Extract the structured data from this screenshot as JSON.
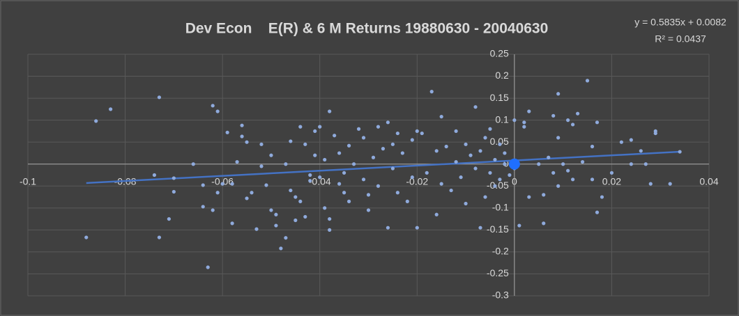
{
  "chart_data": {
    "type": "scatter",
    "title": "Dev Econ    E(R) & 6 M Returns 19880630 - 20040630",
    "trendline_label": "y = 0.5835x + 0.0082",
    "r2_label": "R² = 0.0437",
    "trendline": {
      "slope": 0.5835,
      "intercept": 0.0082,
      "color": "#4472c4"
    },
    "xlim": [
      -0.1,
      0.04
    ],
    "ylim": [
      -0.3,
      0.25
    ],
    "xticks": [
      -0.1,
      -0.08,
      -0.06,
      -0.04,
      -0.02,
      0,
      0.02,
      0.04
    ],
    "yticks": [
      -0.3,
      -0.25,
      -0.2,
      -0.15,
      -0.1,
      -0.05,
      0,
      0.05,
      0.1,
      0.15,
      0.2,
      0.25
    ],
    "grid": true,
    "series": [
      {
        "color": "#8faadc",
        "marker_size": 2.6,
        "x": [
          -0.088,
          -0.086,
          -0.083,
          -0.073,
          -0.074,
          -0.073,
          -0.071,
          -0.07,
          -0.07,
          -0.066,
          -0.064,
          -0.064,
          -0.063,
          -0.062,
          -0.062,
          -0.061,
          -0.061,
          -0.06,
          -0.059,
          -0.058,
          -0.058,
          -0.057,
          -0.056,
          -0.056,
          -0.055,
          -0.055,
          -0.054,
          -0.053,
          -0.052,
          -0.052,
          -0.051,
          -0.05,
          -0.05,
          -0.049,
          -0.049,
          -0.048,
          -0.047,
          -0.047,
          -0.046,
          -0.046,
          -0.045,
          -0.045,
          -0.044,
          -0.044,
          -0.043,
          -0.043,
          -0.042,
          -0.042,
          -0.041,
          -0.041,
          -0.04,
          -0.04,
          -0.039,
          -0.039,
          -0.038,
          -0.038,
          -0.038,
          -0.037,
          -0.036,
          -0.036,
          -0.035,
          -0.035,
          -0.034,
          -0.034,
          -0.033,
          -0.032,
          -0.031,
          -0.031,
          -0.03,
          -0.03,
          -0.029,
          -0.028,
          -0.028,
          -0.027,
          -0.026,
          -0.026,
          -0.025,
          -0.025,
          -0.024,
          -0.024,
          -0.023,
          -0.022,
          -0.021,
          -0.021,
          -0.02,
          -0.02,
          -0.019,
          -0.018,
          -0.017,
          -0.016,
          -0.016,
          -0.015,
          -0.015,
          -0.014,
          -0.013,
          -0.012,
          -0.012,
          -0.011,
          -0.01,
          -0.01,
          -0.009,
          -0.008,
          -0.008,
          -0.007,
          -0.007,
          -0.006,
          -0.006,
          -0.005,
          -0.005,
          -0.004,
          -0.004,
          -0.003,
          -0.003,
          -0.002,
          -0.002,
          -0.001,
          0.0,
          0.0,
          0.001,
          0.002,
          0.002,
          0.003,
          0.003,
          0.005,
          0.006,
          0.006,
          0.007,
          0.008,
          0.008,
          0.009,
          0.009,
          0.009,
          0.01,
          0.011,
          0.011,
          0.012,
          0.012,
          0.013,
          0.014,
          0.015,
          0.016,
          0.016,
          0.017,
          0.017,
          0.018,
          0.02,
          0.022,
          0.024,
          0.024,
          0.026,
          0.027,
          0.028,
          0.029,
          0.029,
          0.032,
          0.034
        ],
        "values": [
          -0.167,
          0.098,
          0.125,
          0.152,
          -0.025,
          -0.167,
          -0.125,
          -0.032,
          -0.063,
          0.0,
          -0.048,
          -0.097,
          -0.235,
          -0.105,
          0.133,
          -0.065,
          0.12,
          -0.045,
          0.072,
          -0.135,
          -0.045,
          0.005,
          0.063,
          0.088,
          0.05,
          -0.078,
          -0.065,
          -0.148,
          -0.005,
          0.045,
          -0.048,
          0.02,
          -0.105,
          -0.14,
          -0.115,
          -0.192,
          -0.168,
          0.0,
          -0.06,
          0.052,
          -0.075,
          -0.128,
          -0.085,
          0.085,
          -0.12,
          0.045,
          -0.025,
          -0.038,
          0.075,
          0.02,
          -0.03,
          0.085,
          0.01,
          -0.1,
          0.12,
          -0.15,
          -0.125,
          0.065,
          -0.045,
          0.025,
          -0.065,
          -0.02,
          0.042,
          -0.085,
          0.0,
          0.08,
          -0.035,
          0.06,
          -0.07,
          -0.105,
          0.015,
          0.085,
          -0.05,
          0.035,
          -0.145,
          0.095,
          -0.01,
          0.045,
          0.07,
          -0.065,
          0.025,
          -0.085,
          -0.03,
          0.055,
          0.075,
          -0.145,
          0.07,
          -0.02,
          0.165,
          0.03,
          -0.115,
          0.108,
          -0.045,
          0.04,
          -0.06,
          0.005,
          0.075,
          -0.03,
          -0.09,
          0.045,
          0.02,
          -0.01,
          0.13,
          -0.145,
          0.03,
          -0.075,
          0.06,
          0.08,
          -0.02,
          0.01,
          -0.05,
          0.045,
          -0.035,
          0.025,
          0.0,
          -0.025,
          0.1,
          -0.01,
          -0.14,
          0.085,
          0.095,
          -0.075,
          0.12,
          0.0,
          -0.135,
          -0.07,
          0.015,
          0.11,
          -0.02,
          0.16,
          0.06,
          -0.05,
          0.0,
          0.1,
          -0.015,
          0.09,
          -0.035,
          0.115,
          0.005,
          0.19,
          0.04,
          -0.035,
          0.095,
          -0.11,
          -0.075,
          -0.02,
          0.05,
          0.055,
          0.0,
          0.03,
          0.0,
          -0.045,
          0.07,
          0.075,
          -0.045,
          0.028
        ]
      },
      {
        "color": "#1f6fff",
        "marker_size": 8,
        "x": [
          0
        ],
        "values": [
          0
        ]
      }
    ]
  }
}
